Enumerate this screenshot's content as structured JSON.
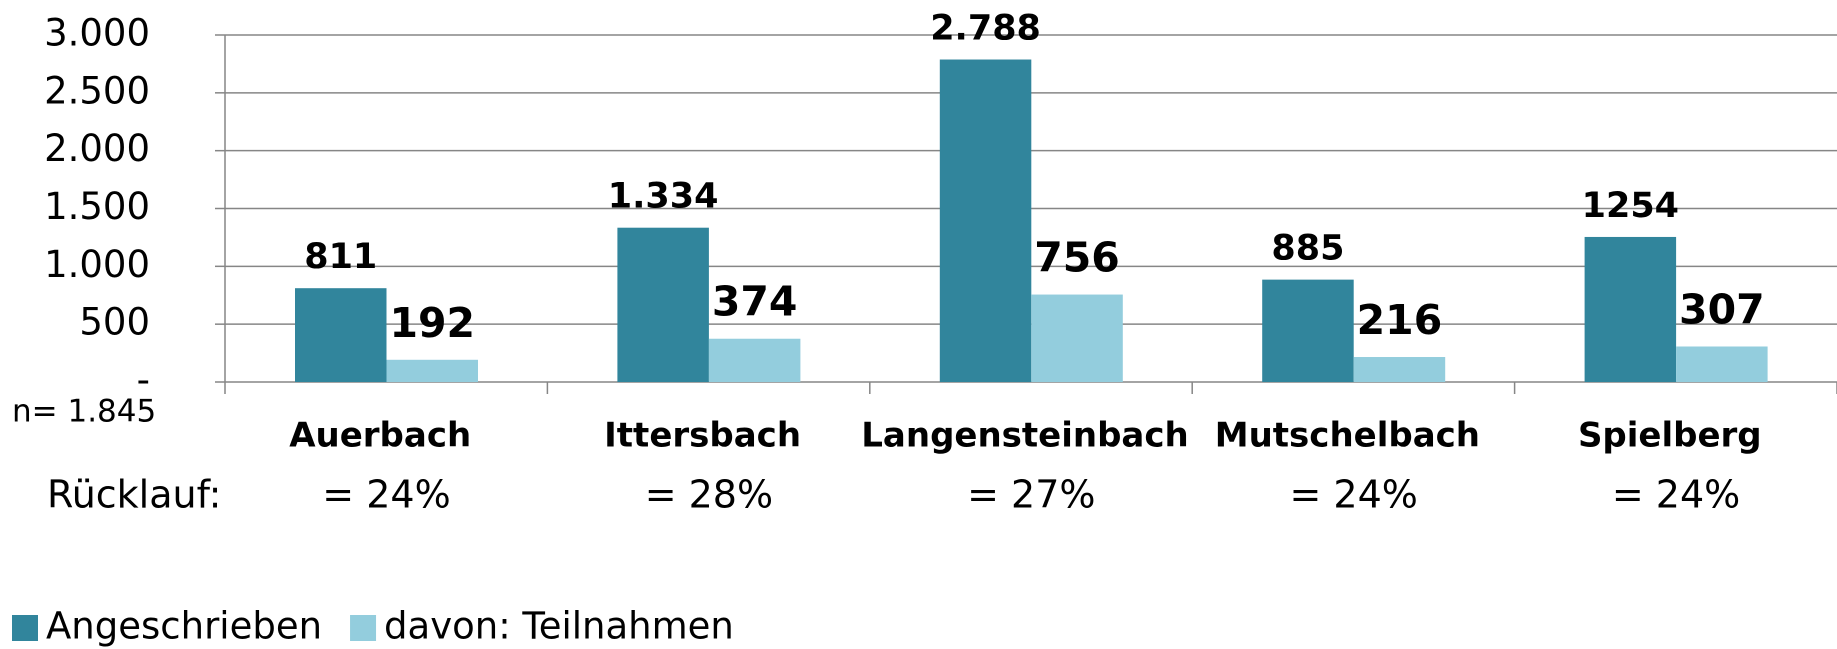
{
  "chart_data": {
    "type": "bar",
    "categories": [
      "Auerbach",
      "Ittersbach",
      "Langensteinbach",
      "Mutschelbach",
      "Spielberg"
    ],
    "series": [
      {
        "name": "Angeschrieben",
        "color": "#31859c",
        "values": [
          811,
          1334,
          2788,
          885,
          1254
        ],
        "value_labels": [
          "811",
          "1.334",
          "2.788",
          "885",
          "1254"
        ]
      },
      {
        "name": "davon: Teilnahmen",
        "color": "#93cddd",
        "values": [
          192,
          374,
          756,
          216,
          307
        ]
      }
    ],
    "ylim": [
      0,
      3000
    ],
    "yticks": [
      {
        "value": 0,
        "label": "-"
      },
      500,
      {
        "value": 1000,
        "label": "1.000"
      },
      {
        "value": 1500,
        "label": "1.500"
      },
      {
        "value": 2000,
        "label": "2.000"
      },
      {
        "value": 2500,
        "label": "2.500"
      },
      {
        "value": 3000,
        "label": "3.000"
      }
    ],
    "grid": true,
    "legend": "bottom-left",
    "annotation": "n= 1.845",
    "return_label": "Rücklauf:",
    "return_rates": [
      "= 24%",
      "= 28%",
      "= 27%",
      "= 24%",
      "= 24%"
    ]
  }
}
